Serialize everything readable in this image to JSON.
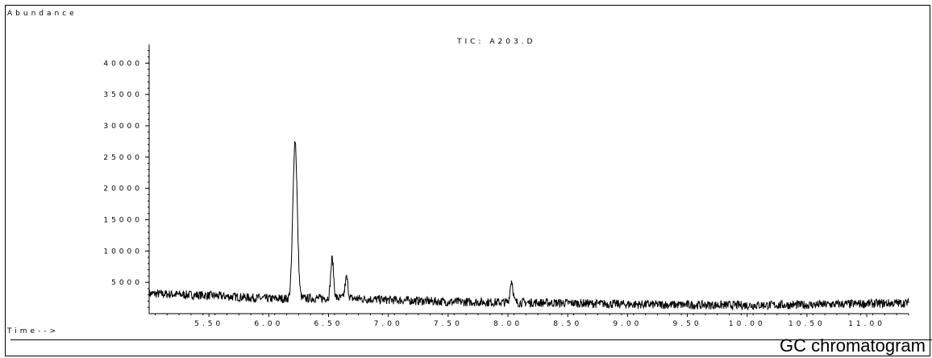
{
  "caption": "GC chromatogram",
  "chart_data": {
    "type": "line",
    "title": "TIC: A203.D",
    "ylabel": "Abundance",
    "xlabel": "Time-->",
    "xlim": [
      5.0,
      11.35
    ],
    "ylim": [
      0,
      43000
    ],
    "x_ticks": [
      "5.50",
      "6.00",
      "6.50",
      "7.00",
      "7.50",
      "8.00",
      "8.50",
      "9.00",
      "9.50",
      "10.00",
      "10.50",
      "11.00"
    ],
    "y_ticks": [
      "5000",
      "10000",
      "15000",
      "20000",
      "25000",
      "30000",
      "35000",
      "40000"
    ],
    "baseline": {
      "x": [
        5.0,
        5.5,
        6.0,
        6.2,
        6.6,
        7.0,
        7.5,
        8.0,
        8.5,
        9.0,
        9.5,
        10.0,
        10.5,
        11.0,
        11.35
      ],
      "y": [
        3200,
        2900,
        2400,
        2400,
        2500,
        2200,
        1900,
        1800,
        1700,
        1500,
        1400,
        1350,
        1400,
        1600,
        1700
      ]
    },
    "peaks": [
      {
        "x": 6.22,
        "height": 25300
      },
      {
        "x": 6.53,
        "height": 6300
      },
      {
        "x": 6.65,
        "height": 3300
      },
      {
        "x": 8.03,
        "height": 3500
      }
    ]
  }
}
